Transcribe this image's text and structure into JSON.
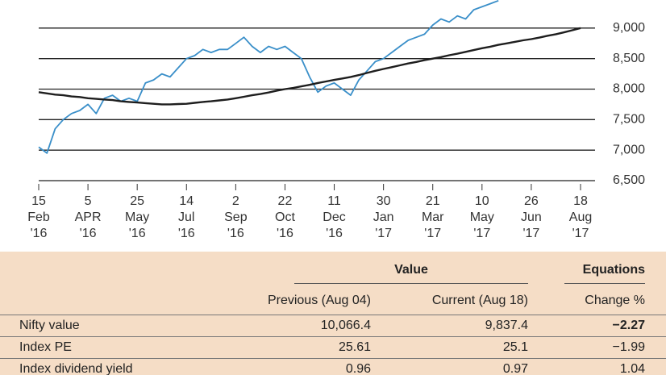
{
  "chart_data": {
    "type": "line",
    "categories": [
      "15\nFeb\n'16",
      null,
      null,
      null,
      null,
      null,
      "5\nAPR\n'16",
      null,
      null,
      null,
      null,
      null,
      "25\nMay\n'16",
      null,
      null,
      null,
      null,
      null,
      "14\nJul\n'16",
      null,
      null,
      null,
      null,
      null,
      "2\nSep\n'16",
      null,
      null,
      null,
      null,
      null,
      "22\nOct\n'16",
      null,
      null,
      null,
      null,
      null,
      "11\nDec\n'16",
      null,
      null,
      null,
      null,
      null,
      "30\nJan\n'17",
      null,
      null,
      null,
      null,
      null,
      "21\nMar\n'17",
      null,
      null,
      null,
      null,
      null,
      "10\nMay\n'17",
      null,
      null,
      null,
      null,
      null,
      "26\nJun\n'17",
      null,
      null,
      null,
      null,
      null,
      "18\nAug\n'17"
    ],
    "series": [
      {
        "color": "#3a8fc9",
        "values": [
          7050,
          6950,
          7350,
          7500,
          7600,
          7650,
          7750,
          7600,
          7850,
          7900,
          7800,
          7850,
          7800,
          8100,
          8150,
          8250,
          8200,
          8350,
          8500,
          8550,
          8650,
          8600,
          8650,
          8650,
          8750,
          8850,
          8700,
          8600,
          8700,
          8650,
          8700,
          8600,
          8500,
          8200,
          7950,
          8050,
          8100,
          8000,
          7900,
          8150,
          8300,
          8450,
          8500,
          8600,
          8700,
          8800,
          8850,
          8900,
          9050,
          9150,
          9100,
          9200,
          9150,
          9300,
          9350,
          9400,
          9450,
          null,
          null,
          null,
          null,
          null,
          null,
          null,
          null,
          null,
          null
        ]
      },
      {
        "color": "#1e1e1e",
        "values": [
          7950,
          7930,
          7910,
          7900,
          7880,
          7870,
          7850,
          7840,
          7830,
          7820,
          7800,
          7790,
          7780,
          7770,
          7760,
          7750,
          7750,
          7755,
          7760,
          7775,
          7790,
          7800,
          7815,
          7830,
          7850,
          7875,
          7900,
          7920,
          7945,
          7975,
          8000,
          8020,
          8045,
          8070,
          8100,
          8125,
          8150,
          8175,
          8200,
          8230,
          8265,
          8300,
          8330,
          8360,
          8390,
          8420,
          8445,
          8475,
          8500,
          8525,
          8555,
          8580,
          8610,
          8640,
          8670,
          8695,
          8725,
          8750,
          8775,
          8800,
          8820,
          8845,
          8875,
          8900,
          8930,
          8965,
          9000
        ]
      }
    ],
    "ylim": [
      6500,
      9500
    ],
    "yticks": [
      {
        "value": 6500,
        "label": "6,500"
      },
      {
        "value": 7000,
        "label": "7,000"
      },
      {
        "value": 7500,
        "label": "7,500"
      },
      {
        "value": 8000,
        "label": "8,000"
      },
      {
        "value": 8500,
        "label": "8,500"
      },
      {
        "value": 9000,
        "label": "9,000"
      }
    ],
    "grid": true
  },
  "table": {
    "group_headers": [
      "Value",
      "Equations"
    ],
    "columns": [
      "Previous (Aug 04)",
      "Current (Aug 18)",
      "Change %"
    ],
    "rows": [
      [
        "Nifty value",
        "10,066.4",
        "9,837.4",
        "−2.27"
      ],
      [
        "Index PE",
        "25.61",
        "25.1",
        "−1.99"
      ],
      [
        "Index dividend yield",
        "0.96",
        "0.97",
        "1.04"
      ]
    ]
  }
}
